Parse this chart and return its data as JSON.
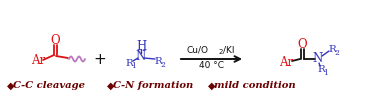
{
  "bg_color": "#ffffff",
  "arrow_color": "#000000",
  "bullet_color": "#6b0000",
  "bullet_char": "◆",
  "label1": "C-C cleavage",
  "label2": "C-N formation",
  "label3": "mild condition",
  "label_fontsize": 7.2,
  "label_color": "#6b0000",
  "red": "#dd1111",
  "blue": "#3333bb",
  "black": "#111111",
  "wavy_color": "#bb77bb",
  "figsize": [
    3.78,
    0.97
  ],
  "dpi": 100
}
